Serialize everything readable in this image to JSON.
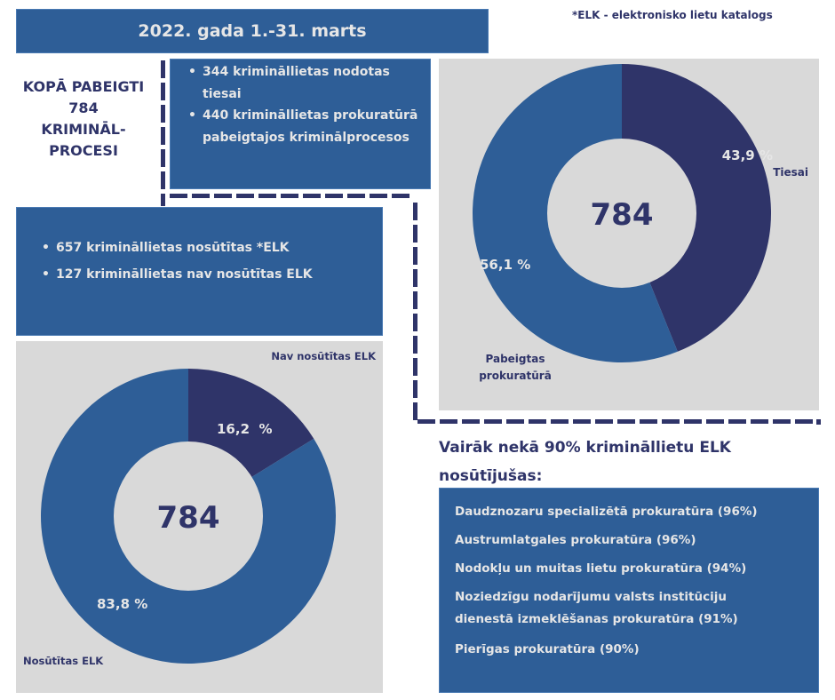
{
  "header": {
    "title": "2022. gada 1.-31. marts",
    "footnote": "*ELK - elektronisko lietu katalogs"
  },
  "total": {
    "lines": [
      "KOPĀ PABEIGTI",
      "784",
      "KRIMINĀL-",
      "PROCESI"
    ]
  },
  "court_box": {
    "items": [
      "344 krimināllietas nodotas tiesai",
      "440 krimināllietas prokuratūrā pabeigtajos kriminālprocesos"
    ]
  },
  "elk_box": {
    "items": [
      "657 krimināllietas  nosūtītas *ELK",
      "127 krimināllietas nav nosūtītas ELK"
    ]
  },
  "colors": {
    "primary_blue": "#2e5e97",
    "navy": "#2f3469",
    "panel_grey": "#d9d9d9",
    "light_text": "#e6e6e6"
  },
  "chart_data": [
    {
      "type": "pie",
      "variant": "donut",
      "title": "",
      "center_label": "784",
      "categories": [
        "Tiesai",
        "Pabeigtas prokuratūrā"
      ],
      "values": [
        43.9,
        56.1
      ],
      "counts": [
        344,
        440
      ],
      "data_labels": [
        "43,9 %",
        "56,1 %"
      ],
      "colors": [
        "#2f3469",
        "#2e5e97"
      ],
      "legend": "none",
      "category_labels_placement": "outside"
    },
    {
      "type": "pie",
      "variant": "donut",
      "title": "",
      "center_label": "784",
      "categories": [
        "Nav nosūtītas ELK",
        "Nosūtītas ELK"
      ],
      "values": [
        16.2,
        83.8
      ],
      "counts": [
        127,
        657
      ],
      "data_labels": [
        "16,2  %",
        "83,8 %"
      ],
      "colors": [
        "#2f3469",
        "#2e5e97"
      ],
      "legend": "none",
      "category_labels_placement": "outside"
    }
  ],
  "elk_top": {
    "heading_line1": "Vairāk nekā 90% krimināllietu ELK",
    "heading_line2": "nosūtījušas:",
    "items": [
      "Daudznozaru specializētā prokuratūra (96%)",
      "Austrumlatgales prokuratūra (96%)",
      "Nodokļu un muitas lietu prokuratūra (94%)",
      "Noziedzīgu nodarījumu valsts institūciju dienestā izmeklēšanas prokuratūra (91%)",
      "Pierīgas prokuratūra (90%)"
    ]
  }
}
